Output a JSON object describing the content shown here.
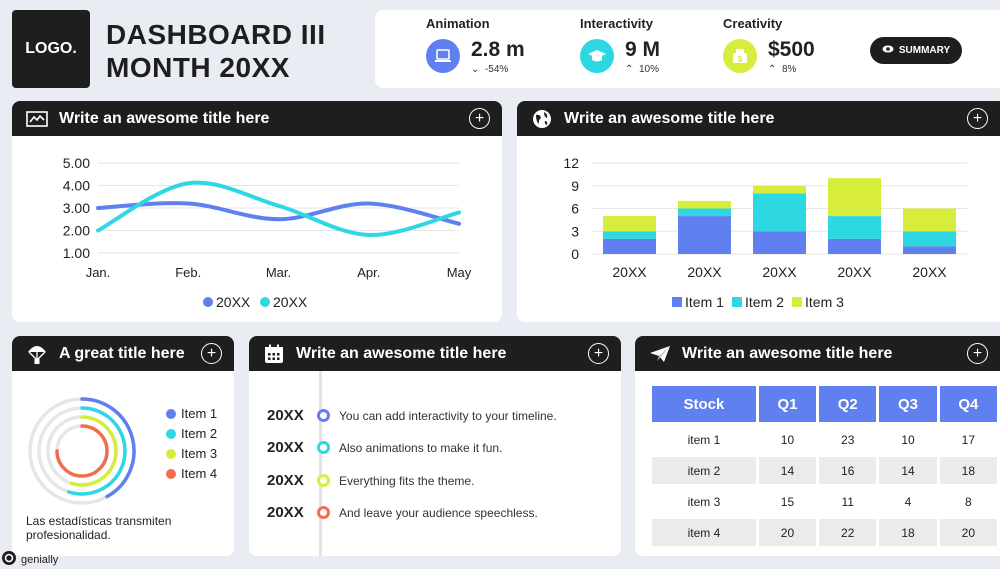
{
  "logo": {
    "text": "LOGO."
  },
  "dashboard": {
    "title_line1": "DASHBOARD III",
    "title_line2": "MONTH 20XX"
  },
  "kpis": [
    {
      "label": "Animation",
      "value": "2.8 m",
      "delta": "-54%",
      "direction": "down",
      "color": "#5f80ee",
      "icon": "laptop-icon"
    },
    {
      "label": "Interactivity",
      "value": "9 M",
      "delta": "10%",
      "direction": "up",
      "color": "#2ed8e3",
      "icon": "graduation-cap-icon"
    },
    {
      "label": "Creativity",
      "value": "$500",
      "delta": "8%",
      "direction": "up",
      "color": "#d8ec3c",
      "icon": "money-icon"
    }
  ],
  "summary_button": {
    "label": "SUMMARY"
  },
  "line_card": {
    "title": "Write an awesome title here",
    "chart_data": {
      "type": "line",
      "categories": [
        "Jan.",
        "Feb.",
        "Mar.",
        "Apr.",
        "May"
      ],
      "y_ticks": [
        "5.00",
        "4.00",
        "3.00",
        "2.00",
        "1.00"
      ],
      "ylim": [
        1,
        5
      ],
      "series": [
        {
          "name": "20XX",
          "color": "#5f80ee",
          "values": [
            3.0,
            3.2,
            2.5,
            3.2,
            2.3
          ]
        },
        {
          "name": "20XX",
          "color": "#2ed8e3",
          "values": [
            2.0,
            4.1,
            3.1,
            1.8,
            2.8
          ]
        }
      ]
    }
  },
  "bar_card": {
    "title": "Write an awesome title here",
    "chart_data": {
      "type": "bar",
      "stacked": true,
      "categories": [
        "20XX",
        "20XX",
        "20XX",
        "20XX",
        "20XX"
      ],
      "y_ticks": [
        "12",
        "9",
        "6",
        "3",
        "0"
      ],
      "ylim": [
        0,
        12
      ],
      "series": [
        {
          "name": "Item 1",
          "color": "#5f80ee",
          "values": [
            2,
            5,
            3,
            2,
            1
          ]
        },
        {
          "name": "Item 2",
          "color": "#2ed8e3",
          "values": [
            1,
            1,
            5,
            3,
            2
          ]
        },
        {
          "name": "Item 3",
          "color": "#d8ec3c",
          "values": [
            2,
            1,
            1,
            5,
            3
          ]
        }
      ]
    }
  },
  "radial_card": {
    "title": "A great title here",
    "items": [
      {
        "label": "Item 1",
        "color": "#5f80ee",
        "fraction": 0.42
      },
      {
        "label": "Item 2",
        "color": "#2ed8e3",
        "fraction": 0.55
      },
      {
        "label": "Item 3",
        "color": "#d8ec3c",
        "fraction": 0.55
      },
      {
        "label": "Item 4",
        "color": "#f26d50",
        "fraction": 0.75
      }
    ],
    "caption": "Las estadísticas transmiten profesionalidad."
  },
  "timeline_card": {
    "title": "Write an awesome title here",
    "events": [
      {
        "year": "20XX",
        "text": "You can add interactivity to your timeline.",
        "color": "#5f80ee"
      },
      {
        "year": "20XX",
        "text": "Also animations to make it fun.",
        "color": "#2ed8e3"
      },
      {
        "year": "20XX",
        "text": "Everything fits the theme.",
        "color": "#d8ec3c"
      },
      {
        "year": "20XX",
        "text": "And leave your audience speechless.",
        "color": "#f26d50"
      }
    ]
  },
  "table_card": {
    "title": "Write an awesome title here",
    "headers": [
      "Stock",
      "Q1",
      "Q2",
      "Q3",
      "Q4"
    ],
    "rows": [
      [
        "item 1",
        "10",
        "23",
        "10",
        "17"
      ],
      [
        "item 2",
        "14",
        "16",
        "14",
        "18"
      ],
      [
        "item 3",
        "15",
        "11",
        "4",
        "8"
      ],
      [
        "item 4",
        "20",
        "22",
        "18",
        "20"
      ]
    ]
  },
  "footer": {
    "brand": "genially"
  }
}
